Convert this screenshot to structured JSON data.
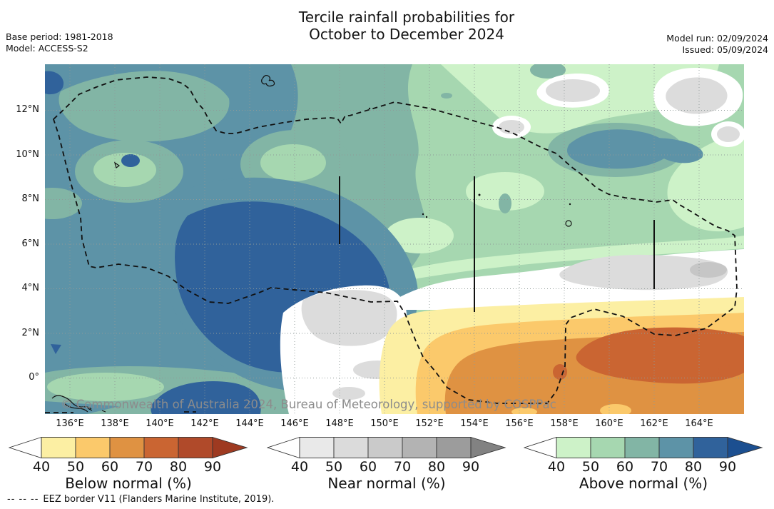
{
  "header": {
    "title_line1": "Tercile rainfall probabilities for",
    "title_line2": "October to December 2024",
    "base_period_label": "Base period: 1981-2018",
    "model_label": "Model: ACCESS-S2",
    "model_run_label": "Model run: 02/09/2024",
    "issued_label": "Issued: 05/09/2024"
  },
  "map": {
    "watermark": "© Commonwealth of Australia 2024, Bureau of Meteorology, supported by COSPPac",
    "lat_ticks": [
      "12°N",
      "10°N",
      "8°N",
      "6°N",
      "4°N",
      "2°N",
      "0°"
    ],
    "lon_ticks": [
      "136°E",
      "138°E",
      "140°E",
      "142°E",
      "144°E",
      "146°E",
      "148°E",
      "150°E",
      "152°E",
      "154°E",
      "156°E",
      "158°E",
      "160°E",
      "162°E",
      "164°E"
    ],
    "border_note": {
      "dash_sample": "--  --  --",
      "text": "EEZ border V11 (Flanders Marine Institute, 2019)."
    }
  },
  "legends": [
    {
      "id": "below-normal",
      "title": "Below normal (%)",
      "ticks": [
        "40",
        "50",
        "60",
        "70",
        "80",
        "90"
      ],
      "segment_colors": [
        "#fcefa3",
        "#fbc96b",
        "#df9242",
        "#ca6532",
        "#b04a2a"
      ],
      "arrow_left_color": "#ffffff",
      "arrow_right_color": "#9e3a21"
    },
    {
      "id": "near-normal",
      "title": "Near normal (%)",
      "ticks": [
        "40",
        "50",
        "60",
        "70",
        "80",
        "90"
      ],
      "segment_colors": [
        "#e9e9e9",
        "#dbdbdb",
        "#cacaca",
        "#b3b3b3",
        "#9c9c9c"
      ],
      "arrow_left_color": "#ffffff",
      "arrow_right_color": "#828282"
    },
    {
      "id": "above-normal",
      "title": "Above normal (%)",
      "ticks": [
        "40",
        "50",
        "60",
        "70",
        "80",
        "90"
      ],
      "segment_colors": [
        "#cdf2c8",
        "#a6d7b0",
        "#82b5a5",
        "#5d93a7",
        "#30629b"
      ],
      "arrow_left_color": "#ffffff",
      "arrow_right_color": "#1c4f90"
    }
  ],
  "map_colors": {
    "above_40": "#cdf2c8",
    "above_50": "#a6d7b0",
    "above_60": "#82b5a5",
    "above_70": "#5d93a7",
    "above_80": "#30629b",
    "near_40": "#dcdcdc",
    "near_50": "#c6c6c6",
    "below_40": "#fcefa3",
    "below_50": "#fbc96b",
    "below_60": "#df9242",
    "below_70": "#ca6532",
    "white": "#ffffff",
    "grid": "#8f9a98",
    "border": "#111111",
    "watermark": "#8c8c8c"
  }
}
